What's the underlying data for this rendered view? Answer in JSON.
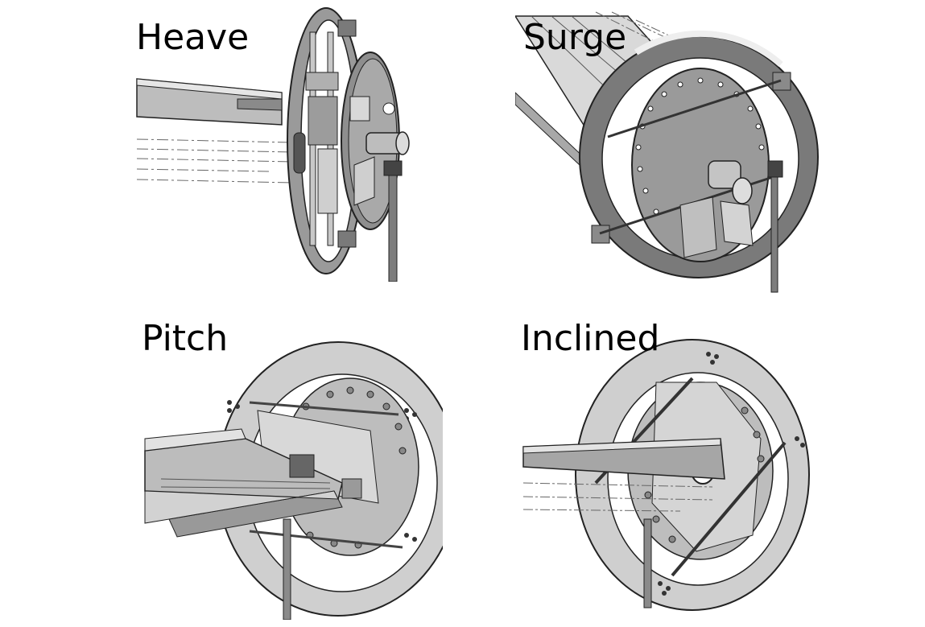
{
  "panels": [
    {
      "id": "heave",
      "label": "Heave"
    },
    {
      "id": "surge",
      "label": "Surge"
    },
    {
      "id": "pitch",
      "label": "Pitch"
    },
    {
      "id": "inclined",
      "label": "Inclined"
    }
  ]
}
